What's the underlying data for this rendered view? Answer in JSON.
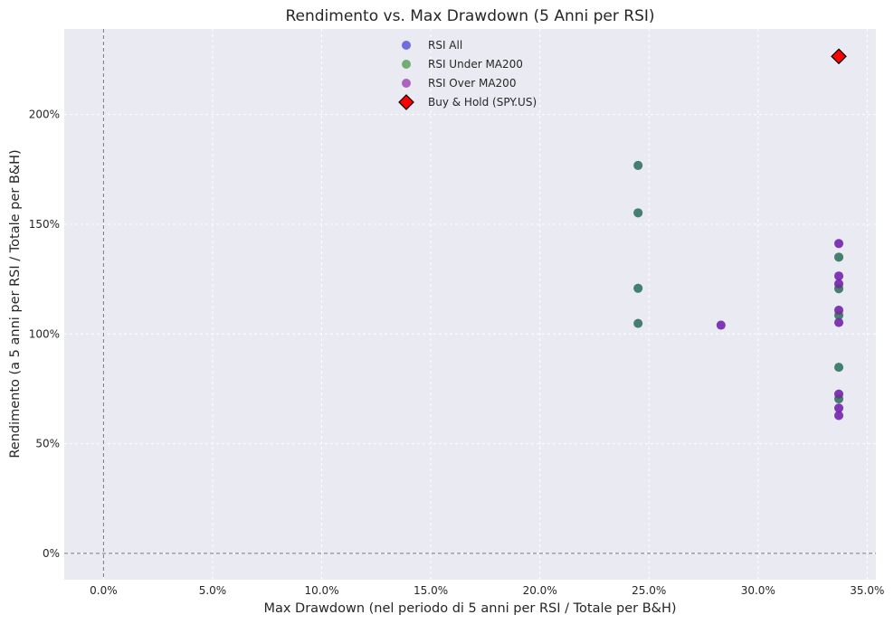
{
  "chart_data": {
    "type": "scatter",
    "title": "Rendimento vs. Max Drawdown (5 Anni per RSI)",
    "xlabel": "Max Drawdown (nel periodo di 5 anni per RSI / Totale per B&H)",
    "ylabel": "Rendimento (a 5 anni per RSI / Totale per B&H)",
    "xlim": [
      -1.8,
      35.4
    ],
    "ylim": [
      -12,
      239
    ],
    "xticks": [
      {
        "value": 0,
        "label": "0.0%"
      },
      {
        "value": 5,
        "label": "5.0%"
      },
      {
        "value": 10,
        "label": "10.0%"
      },
      {
        "value": 15,
        "label": "15.0%"
      },
      {
        "value": 20,
        "label": "20.0%"
      },
      {
        "value": 25,
        "label": "25.0%"
      },
      {
        "value": 30,
        "label": "30.0%"
      },
      {
        "value": 35,
        "label": "35.0%"
      }
    ],
    "yticks": [
      {
        "value": 0,
        "label": "0%"
      },
      {
        "value": 50,
        "label": "50%"
      },
      {
        "value": 100,
        "label": "100%"
      },
      {
        "value": 150,
        "label": "150%"
      },
      {
        "value": 200,
        "label": "200%"
      }
    ],
    "grid": true,
    "legend_position": "top-center",
    "reference_lines": {
      "x": 0,
      "y": 0
    },
    "series": [
      {
        "name": "RSI All",
        "color": "#2b2bd8",
        "marker": "circle",
        "points": [
          {
            "x": 24.5,
            "y": 176.8
          },
          {
            "x": 24.5,
            "y": 155.2
          },
          {
            "x": 24.5,
            "y": 120.8
          },
          {
            "x": 24.5,
            "y": 104.8
          },
          {
            "x": 28.3,
            "y": 104.0
          },
          {
            "x": 33.7,
            "y": 141.2
          },
          {
            "x": 33.7,
            "y": 135.0
          },
          {
            "x": 33.7,
            "y": 126.4
          },
          {
            "x": 33.7,
            "y": 122.8
          },
          {
            "x": 33.7,
            "y": 120.6
          },
          {
            "x": 33.7,
            "y": 110.8
          },
          {
            "x": 33.7,
            "y": 108.5
          },
          {
            "x": 33.7,
            "y": 105.2
          },
          {
            "x": 33.7,
            "y": 84.8
          },
          {
            "x": 33.7,
            "y": 72.6
          },
          {
            "x": 33.7,
            "y": 70.4
          },
          {
            "x": 33.7,
            "y": 66.2
          },
          {
            "x": 33.7,
            "y": 62.8
          }
        ]
      },
      {
        "name": "RSI Under MA200",
        "color": "#2e8b2e",
        "marker": "circle",
        "points": [
          {
            "x": 24.5,
            "y": 176.8
          },
          {
            "x": 24.5,
            "y": 155.2
          },
          {
            "x": 24.5,
            "y": 120.8
          },
          {
            "x": 24.5,
            "y": 104.8
          },
          {
            "x": 33.7,
            "y": 135.0
          },
          {
            "x": 33.7,
            "y": 120.6
          },
          {
            "x": 33.7,
            "y": 108.5
          },
          {
            "x": 33.7,
            "y": 84.8
          },
          {
            "x": 33.7,
            "y": 70.4
          }
        ]
      },
      {
        "name": "RSI Over MA200",
        "color": "#8b1a9e",
        "marker": "circle",
        "points": [
          {
            "x": 28.3,
            "y": 104.0
          },
          {
            "x": 33.7,
            "y": 141.2
          },
          {
            "x": 33.7,
            "y": 126.4
          },
          {
            "x": 33.7,
            "y": 122.8
          },
          {
            "x": 33.7,
            "y": 110.8
          },
          {
            "x": 33.7,
            "y": 105.2
          },
          {
            "x": 33.7,
            "y": 72.6
          },
          {
            "x": 33.7,
            "y": 66.2
          },
          {
            "x": 33.7,
            "y": 62.8
          }
        ]
      },
      {
        "name": "Buy & Hold (SPY.US)",
        "color": "#ff0000",
        "marker": "diamond",
        "points": [
          {
            "x": 33.7,
            "y": 226.5
          }
        ]
      }
    ]
  }
}
